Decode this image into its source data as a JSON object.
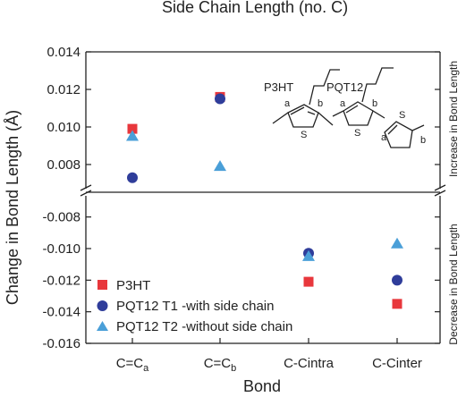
{
  "chart_data": {
    "type": "scatter",
    "title": "Side Chain Length (no. C)",
    "xlabel": "Bond",
    "ylabel": "Change in Bond Length (Å)",
    "right_label_top": "Increase in Bond Length",
    "right_label_bottom": "Decrease in Bond Length",
    "categories": [
      "C=C_a",
      "C=C_b",
      "C-Cintra",
      "C-Cinter"
    ],
    "category_labels": [
      {
        "main": "C=C",
        "sub": "a"
      },
      {
        "main": "C=C",
        "sub": "b"
      },
      {
        "main": "C-Cintra",
        "sub": ""
      },
      {
        "main": "C-Cinter",
        "sub": ""
      }
    ],
    "axis_break": true,
    "upper_ylim": [
      0.007,
      0.014
    ],
    "upper_yticks": [
      "0.008",
      "0.010",
      "0.012",
      "0.014"
    ],
    "lower_ylim": [
      -0.016,
      -0.007
    ],
    "lower_yticks": [
      "-0.008",
      "-0.010",
      "-0.012",
      "-0.014",
      "-0.016"
    ],
    "legend_position": "lower-left",
    "series": [
      {
        "name": "P3HT",
        "marker": "square",
        "color": "#e8373c",
        "values": [
          0.0099,
          0.0116,
          -0.0121,
          -0.0135
        ]
      },
      {
        "name": "PQT12 T1 -with side chain",
        "marker": "circle",
        "color": "#2f3d9a",
        "values": [
          0.0073,
          0.0115,
          -0.0103,
          -0.012
        ]
      },
      {
        "name": "PQT12 T2 -without side chain",
        "marker": "triangle",
        "color": "#4a9fd8",
        "values": [
          0.0095,
          0.0079,
          -0.0105,
          -0.0097
        ]
      }
    ],
    "inset": {
      "molecules": [
        {
          "name": "P3HT",
          "ring_atom": "S",
          "bond_labels": [
            "a",
            "b"
          ]
        },
        {
          "name": "PQT12",
          "ring_atom": "S",
          "bond_labels": [
            "a",
            "b",
            "a",
            "b"
          ]
        }
      ]
    }
  }
}
